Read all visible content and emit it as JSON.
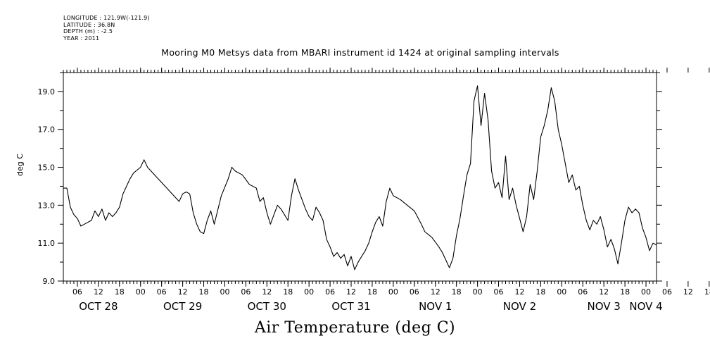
{
  "meta": {
    "longitude": "LONGITUDE : 121.9W(-121.9)",
    "latitude": "LATITUDE : 36.8N",
    "depth": "DEPTH (m) : -2.5",
    "year": "YEAR : 2011"
  },
  "chart_data": {
    "type": "line",
    "title": "Mooring M0 Metsys data from MBARI instrument id 1424 at original sampling intervals",
    "ylabel": "deg C",
    "xlabel": "Air Temperature (deg C)",
    "ylim": [
      9.0,
      20.0
    ],
    "xlim": [
      "2011-10-28T02:00",
      "2011-11-04T03:00"
    ],
    "y_ticks": [
      "9.0",
      "11.0",
      "13.0",
      "15.0",
      "17.0",
      "19.0"
    ],
    "hour_ticks": [
      "06",
      "12",
      "18",
      "00",
      "06",
      "12",
      "18",
      "00",
      "06",
      "12",
      "18",
      "00",
      "06",
      "12",
      "18",
      "00",
      "06",
      "12",
      "18",
      "00",
      "06",
      "12",
      "18",
      "00",
      "06",
      "12",
      "18",
      "00",
      "06",
      "12",
      "18",
      "00"
    ],
    "date_labels": [
      {
        "text": "OCT 28",
        "at": "2011-10-28T12:00"
      },
      {
        "text": "OCT 29",
        "at": "2011-10-29T12:00"
      },
      {
        "text": "OCT 30",
        "at": "2011-10-30T12:00"
      },
      {
        "text": "OCT 31",
        "at": "2011-10-31T12:00"
      },
      {
        "text": "NOV  1",
        "at": "2011-11-01T12:00"
      },
      {
        "text": "NOV  2",
        "at": "2011-11-02T12:00"
      },
      {
        "text": "NOV  3",
        "at": "2011-11-03T12:00"
      },
      {
        "text": "NOV  4",
        "at": "2011-11-04T00:00"
      }
    ],
    "series": [
      {
        "values": [
          [
            "2011-10-28T02:00",
            13.9
          ],
          [
            "2011-10-28T03:00",
            13.9
          ],
          [
            "2011-10-28T04:00",
            12.9
          ],
          [
            "2011-10-28T05:00",
            12.5
          ],
          [
            "2011-10-28T06:00",
            12.3
          ],
          [
            "2011-10-28T07:00",
            11.9
          ],
          [
            "2011-10-28T08:00",
            12.0
          ],
          [
            "2011-10-28T10:00",
            12.2
          ],
          [
            "2011-10-28T11:00",
            12.7
          ],
          [
            "2011-10-28T12:00",
            12.4
          ],
          [
            "2011-10-28T13:00",
            12.8
          ],
          [
            "2011-10-28T14:00",
            12.2
          ],
          [
            "2011-10-28T15:00",
            12.6
          ],
          [
            "2011-10-28T16:00",
            12.4
          ],
          [
            "2011-10-28T17:00",
            12.6
          ],
          [
            "2011-10-28T18:00",
            12.9
          ],
          [
            "2011-10-28T19:00",
            13.6
          ],
          [
            "2011-10-28T21:00",
            14.4
          ],
          [
            "2011-10-28T22:00",
            14.7
          ],
          [
            "2011-10-29T00:00",
            15.0
          ],
          [
            "2011-10-29T01:00",
            15.4
          ],
          [
            "2011-10-29T02:00",
            15.0
          ],
          [
            "2011-10-29T03:00",
            14.8
          ],
          [
            "2011-10-29T05:00",
            14.4
          ],
          [
            "2011-10-29T07:00",
            14.0
          ],
          [
            "2011-10-29T09:00",
            13.6
          ],
          [
            "2011-10-29T11:00",
            13.2
          ],
          [
            "2011-10-29T12:00",
            13.6
          ],
          [
            "2011-10-29T13:00",
            13.7
          ],
          [
            "2011-10-29T14:00",
            13.6
          ],
          [
            "2011-10-29T15:00",
            12.6
          ],
          [
            "2011-10-29T16:00",
            12.0
          ],
          [
            "2011-10-29T17:00",
            11.6
          ],
          [
            "2011-10-29T18:00",
            11.5
          ],
          [
            "2011-10-29T19:00",
            12.2
          ],
          [
            "2011-10-29T20:00",
            12.7
          ],
          [
            "2011-10-29T21:00",
            12.0
          ],
          [
            "2011-10-29T23:00",
            13.5
          ],
          [
            "2011-10-30T01:00",
            14.4
          ],
          [
            "2011-10-30T02:00",
            15.0
          ],
          [
            "2011-10-30T03:00",
            14.8
          ],
          [
            "2011-10-30T05:00",
            14.6
          ],
          [
            "2011-10-30T07:00",
            14.1
          ],
          [
            "2011-10-30T09:00",
            13.9
          ],
          [
            "2011-10-30T10:00",
            13.2
          ],
          [
            "2011-10-30T11:00",
            13.4
          ],
          [
            "2011-10-30T12:00",
            12.6
          ],
          [
            "2011-10-30T13:00",
            12.0
          ],
          [
            "2011-10-30T14:00",
            12.5
          ],
          [
            "2011-10-30T15:00",
            13.0
          ],
          [
            "2011-10-30T16:00",
            12.8
          ],
          [
            "2011-10-30T17:00",
            12.5
          ],
          [
            "2011-10-30T18:00",
            12.2
          ],
          [
            "2011-10-30T19:00",
            13.5
          ],
          [
            "2011-10-30T20:00",
            14.4
          ],
          [
            "2011-10-30T21:00",
            13.8
          ],
          [
            "2011-10-30T22:00",
            13.3
          ],
          [
            "2011-10-30T23:00",
            12.8
          ],
          [
            "2011-10-31T00:00",
            12.4
          ],
          [
            "2011-10-31T01:00",
            12.2
          ],
          [
            "2011-10-31T02:00",
            12.9
          ],
          [
            "2011-10-31T03:00",
            12.6
          ],
          [
            "2011-10-31T04:00",
            12.2
          ],
          [
            "2011-10-31T05:00",
            11.2
          ],
          [
            "2011-10-31T06:00",
            10.8
          ],
          [
            "2011-10-31T07:00",
            10.3
          ],
          [
            "2011-10-31T08:00",
            10.5
          ],
          [
            "2011-10-31T09:00",
            10.2
          ],
          [
            "2011-10-31T10:00",
            10.4
          ],
          [
            "2011-10-31T11:00",
            9.8
          ],
          [
            "2011-10-31T12:00",
            10.3
          ],
          [
            "2011-10-31T13:00",
            9.6
          ],
          [
            "2011-10-31T14:00",
            10.0
          ],
          [
            "2011-10-31T16:00",
            10.6
          ],
          [
            "2011-10-31T17:00",
            11.0
          ],
          [
            "2011-10-31T18:00",
            11.6
          ],
          [
            "2011-10-31T19:00",
            12.1
          ],
          [
            "2011-10-31T20:00",
            12.4
          ],
          [
            "2011-10-31T21:00",
            11.9
          ],
          [
            "2011-10-31T22:00",
            13.2
          ],
          [
            "2011-10-31T23:00",
            13.9
          ],
          [
            "2011-11-01T00:00",
            13.5
          ],
          [
            "2011-11-01T02:00",
            13.3
          ],
          [
            "2011-11-01T04:00",
            13.0
          ],
          [
            "2011-11-01T06:00",
            12.7
          ],
          [
            "2011-11-01T08:00",
            12.0
          ],
          [
            "2011-11-01T09:00",
            11.6
          ],
          [
            "2011-11-01T11:00",
            11.3
          ],
          [
            "2011-11-01T13:00",
            10.8
          ],
          [
            "2011-11-01T14:00",
            10.5
          ],
          [
            "2011-11-01T15:00",
            10.1
          ],
          [
            "2011-11-01T16:00",
            9.7
          ],
          [
            "2011-11-01T17:00",
            10.2
          ],
          [
            "2011-11-01T18:00",
            11.4
          ],
          [
            "2011-11-01T19:00",
            12.3
          ],
          [
            "2011-11-01T20:00",
            13.5
          ],
          [
            "2011-11-01T21:00",
            14.6
          ],
          [
            "2011-11-01T22:00",
            15.2
          ],
          [
            "2011-11-01T23:00",
            18.5
          ],
          [
            "2011-11-02T00:00",
            19.3
          ],
          [
            "2011-11-02T01:00",
            17.2
          ],
          [
            "2011-11-02T02:00",
            18.9
          ],
          [
            "2011-11-02T03:00",
            17.5
          ],
          [
            "2011-11-02T04:00",
            14.8
          ],
          [
            "2011-11-02T05:00",
            13.9
          ],
          [
            "2011-11-02T06:00",
            14.2
          ],
          [
            "2011-11-02T07:00",
            13.4
          ],
          [
            "2011-11-02T08:00",
            15.6
          ],
          [
            "2011-11-02T09:00",
            13.3
          ],
          [
            "2011-11-02T10:00",
            13.9
          ],
          [
            "2011-11-02T11:00",
            13.0
          ],
          [
            "2011-11-02T12:00",
            12.3
          ],
          [
            "2011-11-02T13:00",
            11.6
          ],
          [
            "2011-11-02T14:00",
            12.4
          ],
          [
            "2011-11-02T15:00",
            14.1
          ],
          [
            "2011-11-02T16:00",
            13.3
          ],
          [
            "2011-11-02T17:00",
            14.8
          ],
          [
            "2011-11-02T18:00",
            16.6
          ],
          [
            "2011-11-02T19:00",
            17.2
          ],
          [
            "2011-11-02T20:00",
            18.0
          ],
          [
            "2011-11-02T21:00",
            19.2
          ],
          [
            "2011-11-02T22:00",
            18.5
          ],
          [
            "2011-11-02T23:00",
            17.0
          ],
          [
            "2011-11-03T00:00",
            16.2
          ],
          [
            "2011-11-03T01:00",
            15.2
          ],
          [
            "2011-11-03T02:00",
            14.2
          ],
          [
            "2011-11-03T03:00",
            14.6
          ],
          [
            "2011-11-03T04:00",
            13.8
          ],
          [
            "2011-11-03T05:00",
            14.0
          ],
          [
            "2011-11-03T06:00",
            13.0
          ],
          [
            "2011-11-03T07:00",
            12.2
          ],
          [
            "2011-11-03T08:00",
            11.7
          ],
          [
            "2011-11-03T09:00",
            12.2
          ],
          [
            "2011-11-03T10:00",
            12.0
          ],
          [
            "2011-11-03T11:00",
            12.4
          ],
          [
            "2011-11-03T12:00",
            11.7
          ],
          [
            "2011-11-03T13:00",
            10.8
          ],
          [
            "2011-11-03T14:00",
            11.2
          ],
          [
            "2011-11-03T15:00",
            10.7
          ],
          [
            "2011-11-03T16:00",
            9.9
          ],
          [
            "2011-11-03T17:00",
            11.0
          ],
          [
            "2011-11-03T18:00",
            12.2
          ],
          [
            "2011-11-03T19:00",
            12.9
          ],
          [
            "2011-11-03T20:00",
            12.6
          ],
          [
            "2011-11-03T21:00",
            12.8
          ],
          [
            "2011-11-03T22:00",
            12.6
          ],
          [
            "2011-11-03T23:00",
            11.8
          ],
          [
            "2011-11-04T00:00",
            11.3
          ],
          [
            "2011-11-04T01:00",
            10.6
          ],
          [
            "2011-11-04T02:00",
            11.0
          ],
          [
            "2011-11-04T03:00",
            10.9
          ]
        ]
      }
    ]
  }
}
